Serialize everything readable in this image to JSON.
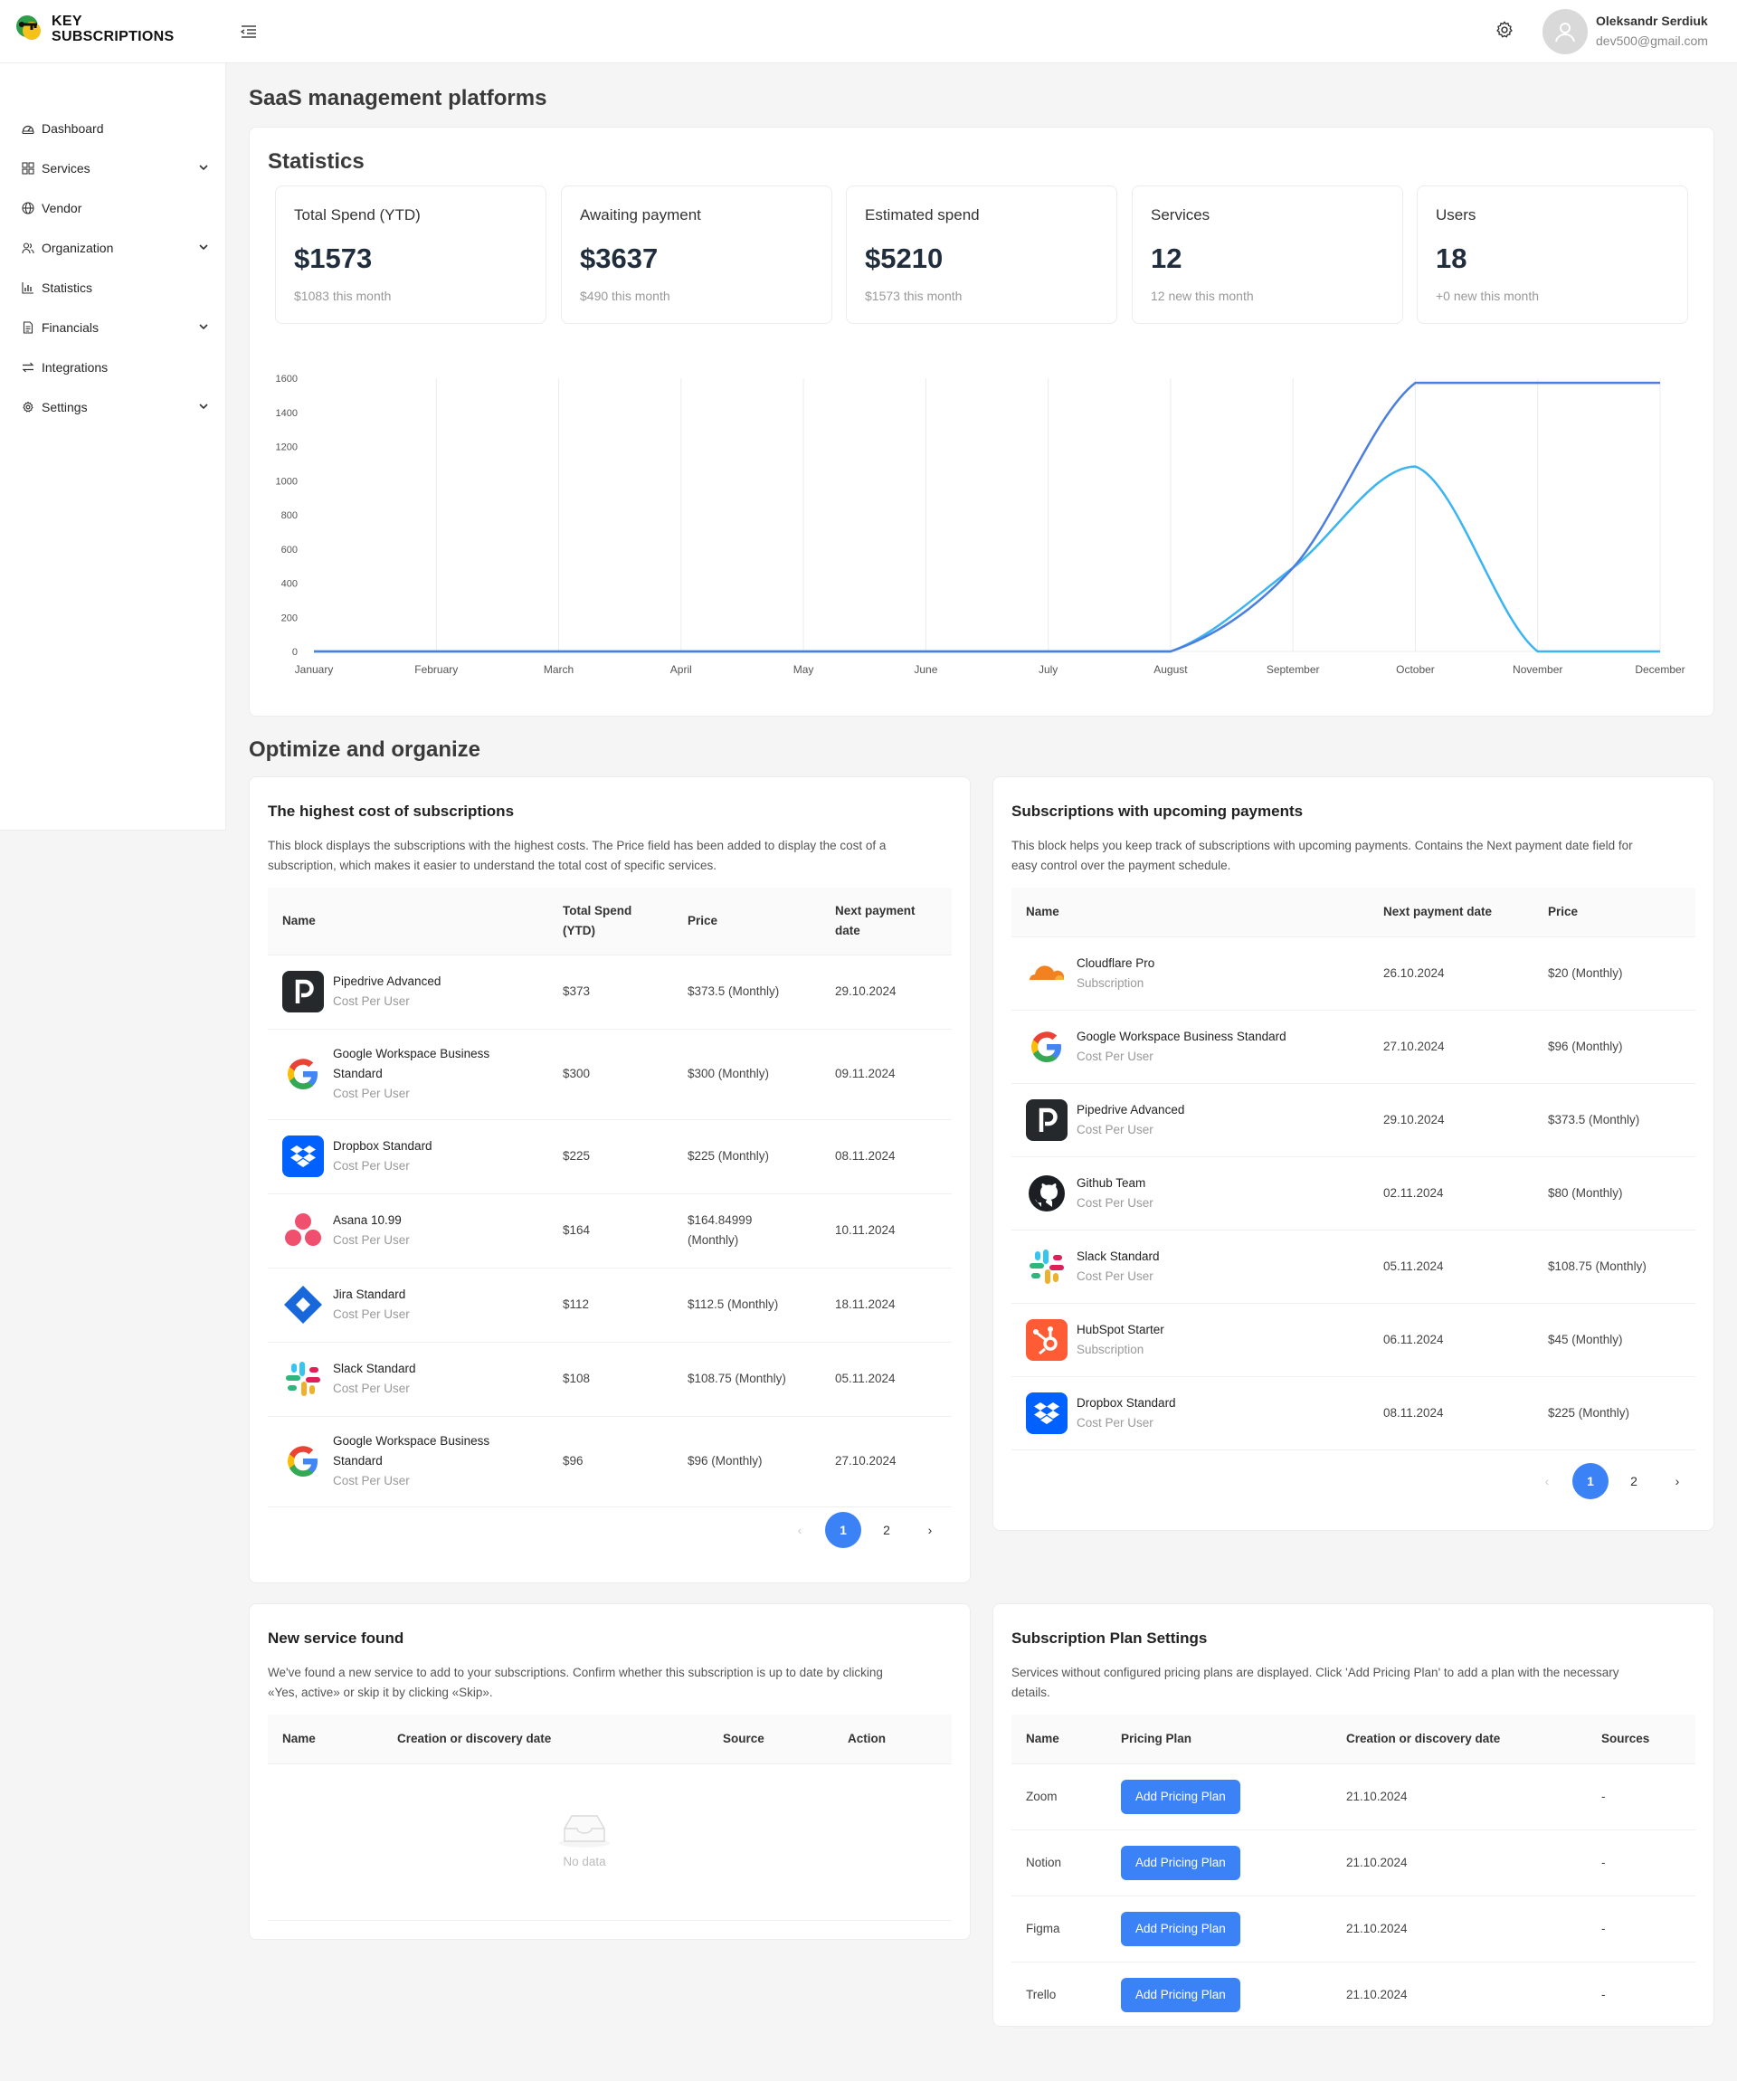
{
  "app": {
    "logo_line1": "KEY",
    "logo_line2": "SUBSCRIPTIONS"
  },
  "user": {
    "name": "Oleksandr Serdiuk",
    "email": "dev500@gmail.com"
  },
  "sidebar": {
    "items": [
      {
        "label": "Dashboard",
        "icon": "dashboard-icon",
        "expandable": false
      },
      {
        "label": "Services",
        "icon": "grid-icon",
        "expandable": true
      },
      {
        "label": "Vendor",
        "icon": "globe-icon",
        "expandable": false
      },
      {
        "label": "Organization",
        "icon": "users-icon",
        "expandable": true
      },
      {
        "label": "Statistics",
        "icon": "bar-chart-icon",
        "expandable": false
      },
      {
        "label": "Financials",
        "icon": "document-icon",
        "expandable": true
      },
      {
        "label": "Integrations",
        "icon": "swap-icon",
        "expandable": false
      },
      {
        "label": "Settings",
        "icon": "gear-icon",
        "expandable": true
      }
    ]
  },
  "page": {
    "title": "SaaS management platforms"
  },
  "statistics": {
    "heading": "Statistics",
    "cards": [
      {
        "label": "Total Spend (YTD)",
        "value": "$1573",
        "sub": "$1083 this month"
      },
      {
        "label": "Awaiting payment",
        "value": "$3637",
        "sub": "$490 this month"
      },
      {
        "label": "Estimated spend",
        "value": "$5210",
        "sub": "$1573 this month"
      },
      {
        "label": "Services",
        "value": "12",
        "sub": "12 new this month"
      },
      {
        "label": "Users",
        "value": "18",
        "sub": "+0 new this month"
      }
    ]
  },
  "chart_data": {
    "type": "line",
    "categories": [
      "January",
      "February",
      "March",
      "April",
      "May",
      "June",
      "July",
      "August",
      "September",
      "October",
      "November",
      "December"
    ],
    "yticks": [
      0,
      200,
      400,
      600,
      800,
      1000,
      1200,
      1400,
      1600
    ],
    "ylim": [
      0,
      1600
    ],
    "grid": "vertical",
    "legend": "none",
    "series": [
      {
        "values": [
          0,
          0,
          0,
          0,
          0,
          0,
          0,
          0,
          490,
          1573,
          1573,
          1573
        ],
        "color": "#4a7fe0"
      },
      {
        "values": [
          0,
          0,
          0,
          0,
          0,
          0,
          0,
          0,
          490,
          1083,
          0,
          0
        ],
        "color": "#3bb4f2"
      }
    ]
  },
  "optimize": {
    "heading": "Optimize and organize"
  },
  "highest": {
    "title": "The highest cost of subscriptions",
    "desc_line1": "This block displays the subscriptions with the highest costs. The Price field has been added to display the cost of a",
    "desc_line2": "subscription, which makes it easier to understand the total cost of specific services.",
    "columns": {
      "name": "Name",
      "spend_l1": "Total Spend",
      "spend_l2": "(YTD)",
      "price": "Price",
      "next_l1": "Next payment",
      "next_l2": "date"
    },
    "rows": [
      {
        "logo": "pipedrive",
        "name_l1": "Pipedrive Advanced",
        "name_l2": "",
        "type": "Cost Per User",
        "spend": "$373",
        "price_l1": "$373.5 (Monthly)",
        "price_l2": "",
        "date": "29.10.2024"
      },
      {
        "logo": "google",
        "name_l1": "Google Workspace Business",
        "name_l2": "Standard",
        "type": "Cost Per User",
        "spend": "$300",
        "price_l1": "$300 (Monthly)",
        "price_l2": "",
        "date": "09.11.2024"
      },
      {
        "logo": "dropbox",
        "name_l1": "Dropbox Standard",
        "name_l2": "",
        "type": "Cost Per User",
        "spend": "$225",
        "price_l1": "$225 (Monthly)",
        "price_l2": "",
        "date": "08.11.2024"
      },
      {
        "logo": "asana",
        "name_l1": "Asana 10.99",
        "name_l2": "",
        "type": "Cost Per User",
        "spend": "$164",
        "price_l1": "$164.84999",
        "price_l2": "(Monthly)",
        "date": "10.11.2024"
      },
      {
        "logo": "jira",
        "name_l1": "Jira Standard",
        "name_l2": "",
        "type": "Cost Per User",
        "spend": "$112",
        "price_l1": "$112.5 (Monthly)",
        "price_l2": "",
        "date": "18.11.2024"
      },
      {
        "logo": "slack",
        "name_l1": "Slack Standard",
        "name_l2": "",
        "type": "Cost Per User",
        "spend": "$108",
        "price_l1": "$108.75 (Monthly)",
        "price_l2": "",
        "date": "05.11.2024"
      },
      {
        "logo": "google",
        "name_l1": "Google Workspace Business",
        "name_l2": "Standard",
        "type": "Cost Per User",
        "spend": "$96",
        "price_l1": "$96 (Monthly)",
        "price_l2": "",
        "date": "27.10.2024"
      }
    ],
    "pagination": {
      "prev": "‹",
      "pages": [
        "1",
        "2"
      ],
      "next": "›"
    }
  },
  "upcoming": {
    "title": "Subscriptions with upcoming payments",
    "desc_line1": "This block helps you keep track of subscriptions with upcoming payments. Contains the Next payment date field for",
    "desc_line2": "easy control over the payment schedule.",
    "columns": {
      "name": "Name",
      "next": "Next payment date",
      "price": "Price"
    },
    "rows": [
      {
        "logo": "cloudflare",
        "name": "Cloudflare Pro",
        "type": "Subscription",
        "date": "26.10.2024",
        "price": "$20 (Monthly)"
      },
      {
        "logo": "google",
        "name": "Google Workspace Business Standard",
        "type": "Cost Per User",
        "date": "27.10.2024",
        "price": "$96 (Monthly)"
      },
      {
        "logo": "pipedrive",
        "name": "Pipedrive Advanced",
        "type": "Cost Per User",
        "date": "29.10.2024",
        "price": "$373.5 (Monthly)"
      },
      {
        "logo": "github",
        "name": "Github Team",
        "type": "Cost Per User",
        "date": "02.11.2024",
        "price": "$80 (Monthly)"
      },
      {
        "logo": "slack",
        "name": "Slack Standard",
        "type": "Cost Per User",
        "date": "05.11.2024",
        "price": "$108.75 (Monthly)"
      },
      {
        "logo": "hubspot",
        "name": "HubSpot Starter",
        "type": "Subscription",
        "date": "06.11.2024",
        "price": "$45 (Monthly)"
      },
      {
        "logo": "dropbox",
        "name": "Dropbox Standard",
        "type": "Cost Per User",
        "date": "08.11.2024",
        "price": "$225 (Monthly)"
      }
    ],
    "pagination": {
      "prev": "‹",
      "pages": [
        "1",
        "2"
      ],
      "next": "›"
    }
  },
  "newservice": {
    "title": "New service found",
    "desc_line1": "We've found a new service to add to your subscriptions. Confirm whether this subscription is up to date by clicking",
    "desc_line2": "«Yes, active» or skip it by clicking «Skip».",
    "columns": {
      "name": "Name",
      "date": "Creation or discovery date",
      "source": "Source",
      "action": "Action"
    },
    "empty": "No data"
  },
  "planSettings": {
    "title": "Subscription Plan Settings",
    "desc_line1": "Services without configured pricing plans are displayed. Click 'Add Pricing Plan' to add a plan with the necessary",
    "desc_line2": "details.",
    "columns": {
      "name": "Name",
      "plan": "Pricing Plan",
      "date": "Creation or discovery date",
      "sources": "Sources"
    },
    "button_label": "Add Pricing Plan",
    "rows": [
      {
        "name": "Zoom",
        "date": "21.10.2024",
        "sources": "-"
      },
      {
        "name": "Notion",
        "date": "21.10.2024",
        "sources": "-"
      },
      {
        "name": "Figma",
        "date": "21.10.2024",
        "sources": "-"
      },
      {
        "name": "Trello",
        "date": "21.10.2024",
        "sources": "-"
      }
    ]
  }
}
